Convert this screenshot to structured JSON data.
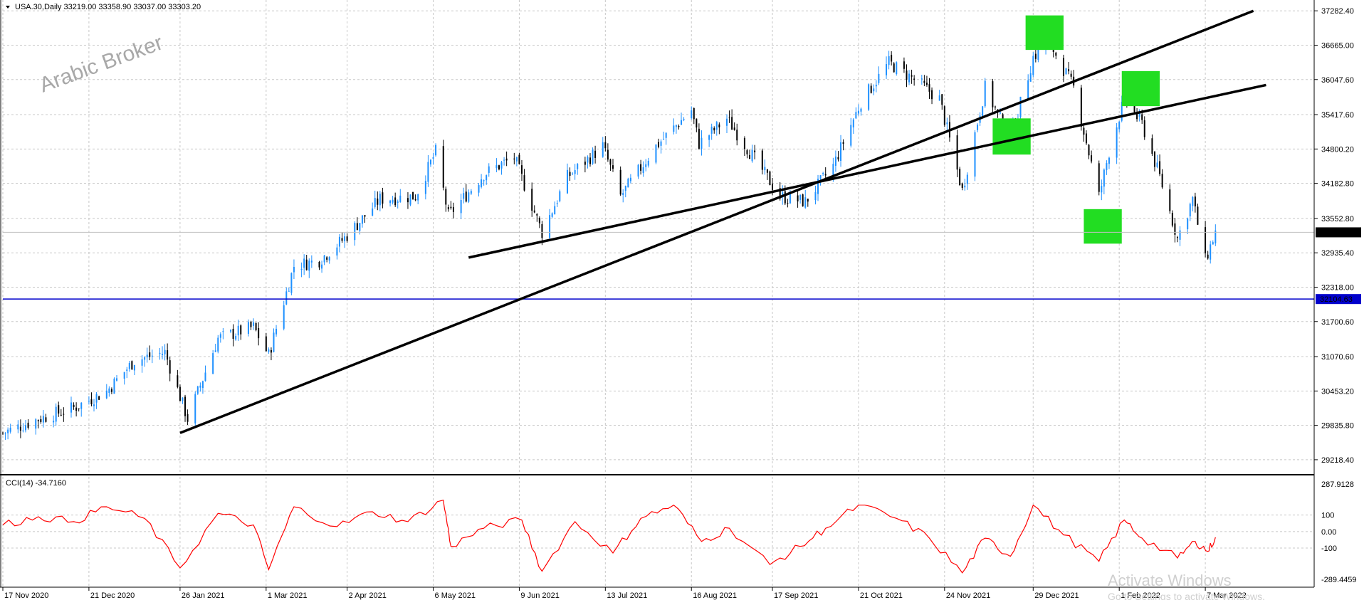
{
  "header": {
    "symbol_info": "USA.30,Daily  33219.00 33358.90 33037.00 33303.20"
  },
  "watermark": "Arabic Broker",
  "activation": {
    "line1": "Activate Windows",
    "line2": "Go to Settings to activate Windows."
  },
  "colors": {
    "up": "#1e90ff",
    "down": "#000000",
    "grid": "#c8c8c8",
    "cci": "#ff0000",
    "support": "#0000cc",
    "highlight": "#22dd22",
    "trendline": "#000000"
  },
  "chart_data": {
    "type": "candlestick",
    "main_axis": {
      "ticks": [
        "37282.40",
        "36665.00",
        "36047.60",
        "35417.60",
        "34800.20",
        "34182.80",
        "33552.80",
        "32935.40",
        "32318.00",
        "31700.60",
        "31070.60",
        "30453.20",
        "29835.80",
        "29218.40"
      ],
      "ylim": [
        29000,
        37400
      ]
    },
    "current_price": "33303.20",
    "support_level": "32104.63",
    "x_ticks": [
      "17 Nov 2020",
      "21 Dec 2020",
      "26 Jan 2021",
      "1 Mar 2021",
      "2 Apr 2021",
      "6 May 2021",
      "9 Jun 2021",
      "13 Jul 2021",
      "16 Aug 2021",
      "17 Sep 2021",
      "21 Oct 2021",
      "24 Nov 2021",
      "29 Dec 2021",
      "1 Feb 2022",
      "7 Mar 2022"
    ],
    "price_path": [
      [
        "17 Nov 2020",
        29700
      ],
      [
        "1 Dec 2020",
        29950
      ],
      [
        "15 Dec 2020",
        30150
      ],
      [
        "28 Dec 2020",
        30450
      ],
      [
        "8 Jan 2021",
        31000
      ],
      [
        "20 Jan 2021",
        31150
      ],
      [
        "29 Jan 2021",
        29950
      ],
      [
        "10 Feb 2021",
        31400
      ],
      [
        "24 Feb 2021",
        31600
      ],
      [
        "2 Mar 2021",
        31100
      ],
      [
        "12 Mar 2021",
        32700
      ],
      [
        "22 Mar 2021",
        32800
      ],
      [
        "1 Apr 2021",
        33200
      ],
      [
        "15 Apr 2021",
        33900
      ],
      [
        "29 Apr 2021",
        33950
      ],
      [
        "7 May 2021",
        34750
      ],
      [
        "12 May 2021",
        33600
      ],
      [
        "26 May 2021",
        34350
      ],
      [
        "7 Jun 2021",
        34650
      ],
      [
        "18 Jun 2021",
        33300
      ],
      [
        "28 Jun 2021",
        34300
      ],
      [
        "12 Jul 2021",
        34850
      ],
      [
        "19 Jul 2021",
        33950
      ],
      [
        "2 Aug 2021",
        34850
      ],
      [
        "16 Aug 2021",
        35500
      ],
      [
        "19 Aug 2021",
        34900
      ],
      [
        "30 Aug 2021",
        35350
      ],
      [
        "20 Sep 2021",
        33950
      ],
      [
        "30 Sep 2021",
        33850
      ],
      [
        "11 Oct 2021",
        34500
      ],
      [
        "22 Oct 2021",
        35650
      ],
      [
        "2 Nov 2021",
        36350
      ],
      [
        "12 Nov 2021",
        36050
      ],
      [
        "22 Nov 2021",
        35700
      ],
      [
        "1 Dec 2021",
        34050
      ],
      [
        "10 Dec 2021",
        35900
      ],
      [
        "20 Dec 2021",
        34950
      ],
      [
        "29 Dec 2021",
        36450
      ],
      [
        "4 Jan 2022",
        36750
      ],
      [
        "14 Jan 2022",
        35900
      ],
      [
        "24 Jan 2022",
        33950
      ],
      [
        "28 Jan 2022",
        34750
      ],
      [
        "3 Feb 2022",
        35700
      ],
      [
        "10 Feb 2022",
        35250
      ],
      [
        "17 Feb 2022",
        34300
      ],
      [
        "24 Feb 2022",
        33200
      ],
      [
        "2 Mar 2022",
        33900
      ],
      [
        "7 Mar 2022",
        32800
      ],
      [
        "11 Mar 2022",
        33303
      ]
    ],
    "trendlines": [
      {
        "from": [
          "26 Jan 2021",
          29700
        ],
        "to": [
          "26 Mar 2022",
          37282
        ]
      },
      {
        "from": [
          "20 May 2021",
          32850
        ],
        "to": [
          "31 Mar 2022",
          35950
        ]
      }
    ],
    "highlight_boxes": [
      {
        "date_range": [
          "26 Dec 2021",
          "10 Jan 2022"
        ],
        "price_range": [
          36580,
          37200
        ]
      },
      {
        "date_range": [
          "13 Dec 2021",
          "28 Dec 2021"
        ],
        "price_range": [
          34700,
          35350
        ]
      },
      {
        "date_range": [
          "18 Jan 2022",
          "2 Feb 2022"
        ],
        "price_range": [
          33100,
          33720
        ]
      },
      {
        "date_range": [
          "2 Feb 2022",
          "17 Feb 2022"
        ],
        "price_range": [
          35570,
          36200
        ]
      }
    ],
    "indicator": {
      "name": "CCI(14) -34.7160",
      "ticks": [
        "287.9128",
        "100",
        "0.00",
        "-100",
        "-289.4459"
      ],
      "ylim": [
        -289.4459,
        287.9128
      ],
      "path": [
        [
          "17 Nov 2020",
          40
        ],
        [
          "1 Dec 2020",
          90
        ],
        [
          "15 Dec 2020",
          60
        ],
        [
          "28 Dec 2020",
          150
        ],
        [
          "12 Jan 2021",
          80
        ],
        [
          "26 Jan 2021",
          -220
        ],
        [
          "10 Feb 2021",
          110
        ],
        [
          "24 Feb 2021",
          40
        ],
        [
          "2 Mar 2021",
          -230
        ],
        [
          "12 Mar 2021",
          150
        ],
        [
          "29 Mar 2021",
          30
        ],
        [
          "12 Apr 2021",
          120
        ],
        [
          "26 Apr 2021",
          60
        ],
        [
          "10 May 2021",
          190
        ],
        [
          "13 May 2021",
          -90
        ],
        [
          "26 May 2021",
          20
        ],
        [
          "10 Jun 2021",
          70
        ],
        [
          "18 Jun 2021",
          -240
        ],
        [
          "1 Jul 2021",
          60
        ],
        [
          "16 Jul 2021",
          -130
        ],
        [
          "27 Jul 2021",
          80
        ],
        [
          "9 Aug 2021",
          160
        ],
        [
          "20 Aug 2021",
          -60
        ],
        [
          "31 Aug 2021",
          20
        ],
        [
          "16 Sep 2021",
          -200
        ],
        [
          "28 Sep 2021",
          -90
        ],
        [
          "8 Oct 2021",
          20
        ],
        [
          "21 Oct 2021",
          160
        ],
        [
          "5 Nov 2021",
          80
        ],
        [
          "18 Nov 2021",
          -40
        ],
        [
          "1 Dec 2021",
          -250
        ],
        [
          "10 Dec 2021",
          -40
        ],
        [
          "20 Dec 2021",
          -150
        ],
        [
          "29 Dec 2021",
          160
        ],
        [
          "10 Jan 2022",
          -20
        ],
        [
          "24 Jan 2022",
          -180
        ],
        [
          "3 Feb 2022",
          70
        ],
        [
          "10 Feb 2022",
          -40
        ],
        [
          "24 Feb 2022",
          -160
        ],
        [
          "3 Mar 2022",
          -60
        ],
        [
          "8 Mar 2022",
          -120
        ],
        [
          "11 Mar 2022",
          -35
        ]
      ]
    }
  }
}
